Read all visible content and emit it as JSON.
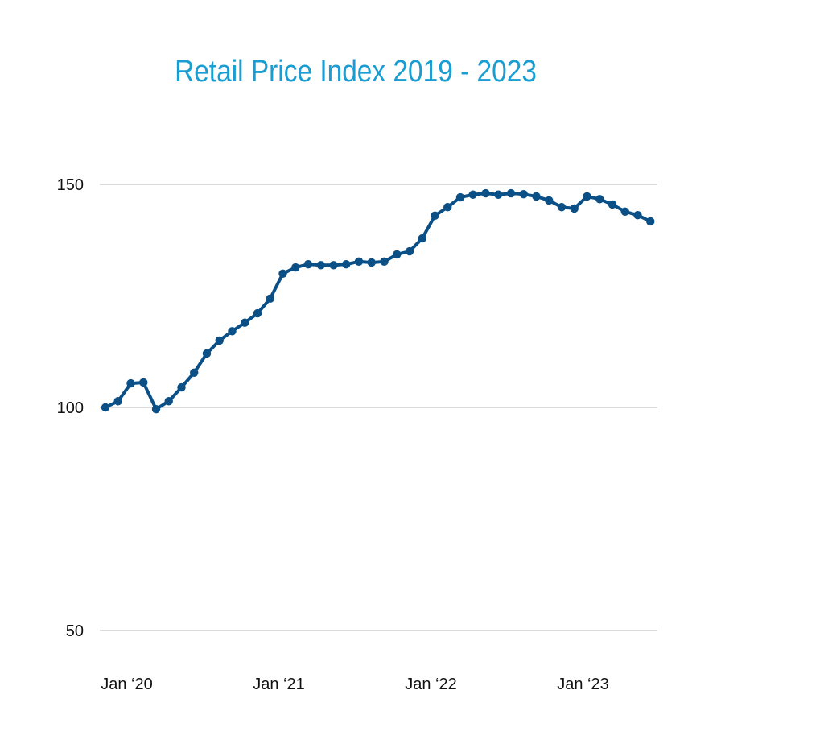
{
  "chart_data": {
    "type": "line",
    "title": "Retail Price Index 2019 - 2023",
    "xlabel": "",
    "ylabel": "",
    "ylim": [
      50,
      150
    ],
    "yticks": [
      150,
      100,
      50
    ],
    "grid": true,
    "line_color": "#0a4f86",
    "title_color": "#1a9dd0",
    "categories": [
      "Nov 2019",
      "Dec 2019",
      "Jan 2020",
      "Feb 2020",
      "Mar 2020",
      "Apr 2020",
      "May 2020",
      "Jun 2020",
      "Jul 2020",
      "Aug 2020",
      "Sep 2020",
      "Oct 2020",
      "Nov 2020",
      "Dec 2020",
      "Jan 2021",
      "Feb 2021",
      "Mar 2021",
      "Apr 2021",
      "May 2021",
      "Jun 2021",
      "Jul 2021",
      "Aug 2021",
      "Sep 2021",
      "Oct 2021",
      "Nov 2021",
      "Dec 2021",
      "Jan 2022",
      "Feb 2022",
      "Mar 2022",
      "Apr 2022",
      "May 2022",
      "Jun 2022",
      "Jul 2022",
      "Aug 2022",
      "Sep 2022",
      "Oct 2022",
      "Nov 2022",
      "Dec 2022",
      "Jan 2023",
      "Feb 2023",
      "Mar 2023",
      "Apr 2023",
      "May 2023",
      "Jun 2023"
    ],
    "values": [
      100.0,
      101.4,
      105.4,
      105.6,
      99.6,
      101.4,
      104.5,
      107.8,
      112.1,
      115.0,
      117.1,
      119.0,
      121.1,
      124.4,
      130.0,
      131.4,
      132.1,
      131.9,
      131.9,
      132.1,
      132.7,
      132.5,
      132.7,
      134.3,
      135.0,
      137.9,
      143.0,
      144.9,
      147.1,
      147.7,
      148.0,
      147.7,
      148.0,
      147.8,
      147.3,
      146.4,
      144.9,
      144.6,
      147.3,
      146.7,
      145.5,
      143.9,
      143.1,
      141.7
    ],
    "xticks": [
      {
        "index": 2,
        "label": "Jan ‘20"
      },
      {
        "index": 14,
        "label": "Jan ‘21"
      },
      {
        "index": 26,
        "label": "Jan ‘22"
      },
      {
        "index": 38,
        "label": "Jan ‘23"
      }
    ]
  }
}
